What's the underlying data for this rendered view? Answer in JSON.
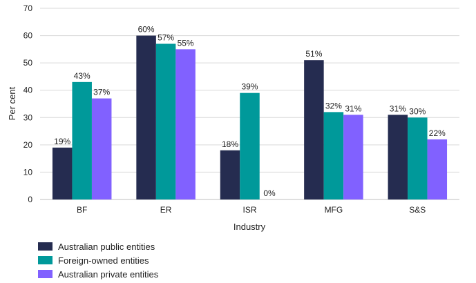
{
  "chart_data": {
    "type": "bar",
    "title": "",
    "xlabel": "Industry",
    "ylabel": "Per cent",
    "ylim": [
      0,
      70
    ],
    "yticks": [
      0,
      10,
      20,
      30,
      40,
      50,
      60,
      70
    ],
    "grid": true,
    "legend_position": "bottom-left",
    "categories": [
      "BF",
      "ER",
      "ISR",
      "MFG",
      "S&S"
    ],
    "series": [
      {
        "name": "Australian public entities",
        "color": "#252C50",
        "values": [
          19,
          60,
          18,
          51,
          31
        ],
        "labels": [
          "19%",
          "60%",
          "18%",
          "51%",
          "31%"
        ]
      },
      {
        "name": "Foreign-owned entities",
        "color": "#00999A",
        "values": [
          43,
          57,
          39,
          32,
          30
        ],
        "labels": [
          "43%",
          "57%",
          "39%",
          "32%",
          "30%"
        ]
      },
      {
        "name": "Australian private entities",
        "color": "#8161FF",
        "values": [
          37,
          55,
          0,
          31,
          22
        ],
        "labels": [
          "37%",
          "55%",
          "0%",
          "31%",
          "22%"
        ]
      }
    ]
  }
}
